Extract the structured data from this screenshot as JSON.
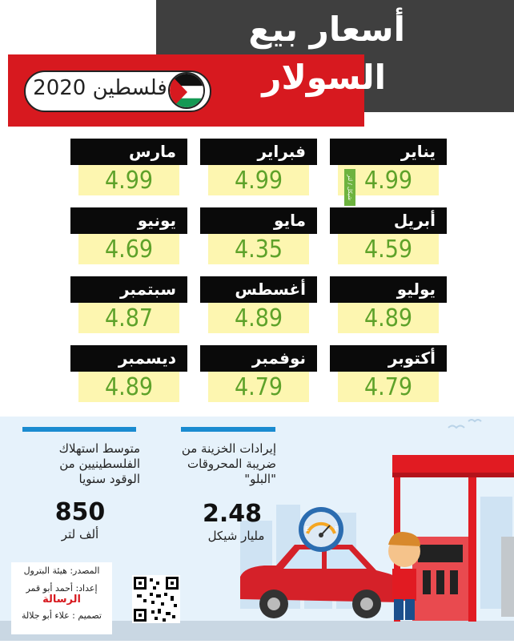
{
  "header": {
    "title_line1": "أسعار بيع",
    "title_line2": "السولار",
    "country_year": "فلسطين 2020"
  },
  "unit_tag": "شيكل / لتر",
  "months": [
    {
      "name": "يناير",
      "price": "4.99"
    },
    {
      "name": "فبراير",
      "price": "4.99"
    },
    {
      "name": "مارس",
      "price": "4.99"
    },
    {
      "name": "أبريل",
      "price": "4.59"
    },
    {
      "name": "مايو",
      "price": "4.35"
    },
    {
      "name": "يونيو",
      "price": "4.69"
    },
    {
      "name": "يوليو",
      "price": "4.89"
    },
    {
      "name": "أغسطس",
      "price": "4.89"
    },
    {
      "name": "سبتمبر",
      "price": "4.87"
    },
    {
      "name": "أكتوبر",
      "price": "4.79"
    },
    {
      "name": "نوفمبر",
      "price": "4.79"
    },
    {
      "name": "ديسمبر",
      "price": "4.89"
    }
  ],
  "stats": {
    "consumption": {
      "label": [
        "متوسط استهلاك",
        "الفلسطينيين من",
        "الوقود سنويا"
      ],
      "value": "850",
      "unit": "ألف لتر"
    },
    "revenue": {
      "label": [
        "إيرادات الخزينة من",
        "ضريبة المحروقات",
        "\"البلو\""
      ],
      "value": "2.48",
      "unit": "مليار شيكل"
    }
  },
  "gauge": {
    "empty": "E",
    "full": "F"
  },
  "credits": {
    "source": "المصدر: هيئة البترول",
    "prepared": "إعداد: أحمد أبو قمر",
    "outlet": "الرسالة",
    "design": "تصميم : علاء أبو جلالة"
  },
  "colors": {
    "header_dark": "#3f3f3f",
    "header_red": "#d7191f",
    "month_bg": "#0a0a0a",
    "price_bg": "#fdf6b0",
    "price_text": "#5ea22a",
    "accent_blue": "#1a8bd0"
  }
}
